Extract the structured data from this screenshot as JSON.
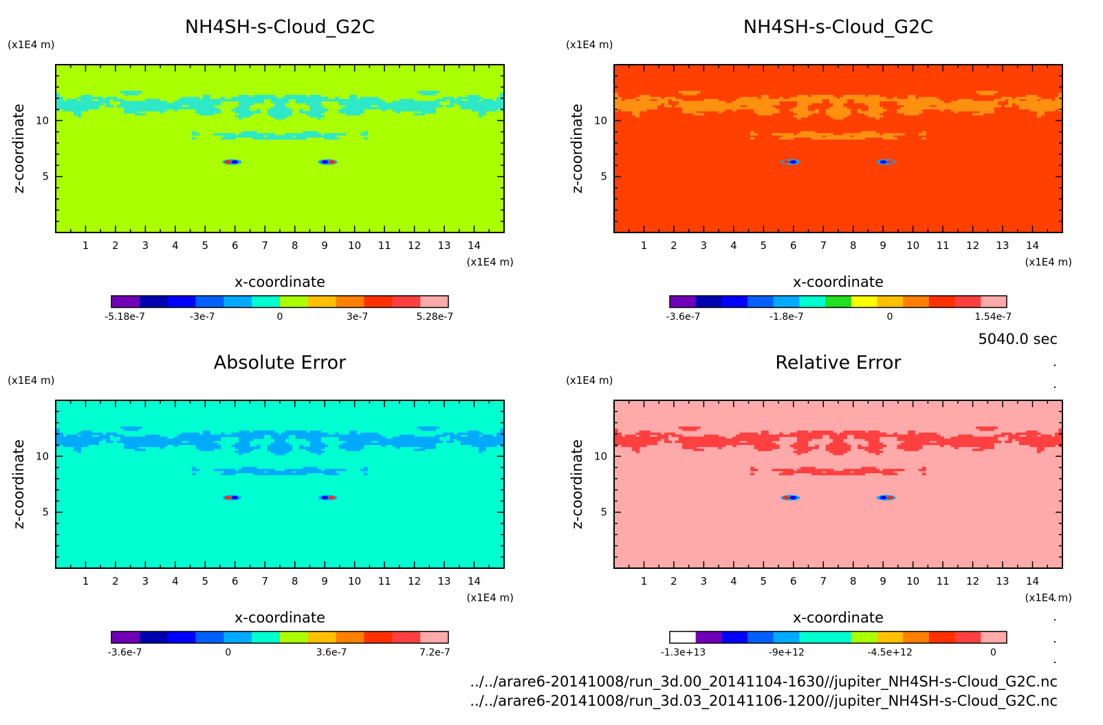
{
  "timestamp": "5040.0 sec",
  "files": [
    "../../arare6-20141008/run_3d.00_20141104-1630//jupiter_NH4SH-s-Cloud_G2C.nc",
    "../../arare6-20141008/run_3d.03_20141106-1200//jupiter_NH4SH-s-Cloud_G2C.nc"
  ],
  "chart_data": [
    {
      "type": "heatmap",
      "title": "NH4SH-s-Cloud_G2C",
      "xlabel": "x-coordinate",
      "ylabel": "z-coordinate",
      "x_unit": "(x1E4 m)",
      "y_unit": "(x1E4 m)",
      "xlim": [
        0,
        15
      ],
      "ylim": [
        0,
        15
      ],
      "x_ticks": [
        "1",
        "2",
        "3",
        "4",
        "5",
        "6",
        "7",
        "8",
        "9",
        "10",
        "11",
        "12",
        "13",
        "14"
      ],
      "y_ticks": [
        "5",
        "10"
      ],
      "background_color": "#aaff00",
      "pattern_color": "#2ee8c8",
      "colorbar": {
        "colors": [
          "#7000b8",
          "#0000b0",
          "#0000ff",
          "#0060ff",
          "#00aaff",
          "#00ffd0",
          "#aaff00",
          "#ffc000",
          "#ff8000",
          "#ff3000",
          "#ff4040",
          "#ffaaaa"
        ],
        "tick_labels": [
          "-5.18e-7",
          "-3e-7",
          "0",
          "3e-7",
          "5.28e-7"
        ]
      }
    },
    {
      "type": "heatmap",
      "title": "NH4SH-s-Cloud_G2C",
      "xlabel": "x-coordinate",
      "ylabel": "z-coordinate",
      "x_unit": "(x1E4 m)",
      "y_unit": "(x1E4 m)",
      "xlim": [
        0,
        15
      ],
      "ylim": [
        0,
        15
      ],
      "x_ticks": [
        "1",
        "2",
        "3",
        "4",
        "5",
        "6",
        "7",
        "8",
        "9",
        "10",
        "11",
        "12",
        "13",
        "14"
      ],
      "y_ticks": [
        "5",
        "10"
      ],
      "background_color": "#ff4000",
      "pattern_color": "#ff9010",
      "colorbar": {
        "colors": [
          "#7000b8",
          "#0000b0",
          "#0000ff",
          "#0060ff",
          "#00aaff",
          "#00ffd0",
          "#20e020",
          "#ffff00",
          "#ffc000",
          "#ff8000",
          "#ff3000",
          "#ff4040",
          "#ffaaaa"
        ],
        "tick_labels": [
          "-3.6e-7",
          "-1.8e-7",
          "0",
          "1.54e-7"
        ]
      }
    },
    {
      "type": "heatmap",
      "title": "Absolute Error",
      "xlabel": "x-coordinate",
      "ylabel": "z-coordinate",
      "x_unit": "(x1E4 m)",
      "y_unit": "(x1E4 m)",
      "xlim": [
        0,
        15
      ],
      "ylim": [
        0,
        15
      ],
      "x_ticks": [
        "1",
        "2",
        "3",
        "4",
        "5",
        "6",
        "7",
        "8",
        "9",
        "10",
        "11",
        "12",
        "13",
        "14"
      ],
      "y_ticks": [
        "5",
        "10"
      ],
      "background_color": "#00ffd0",
      "pattern_color": "#00aaff",
      "colorbar": {
        "colors": [
          "#7000b8",
          "#0000b0",
          "#0000ff",
          "#0060ff",
          "#00aaff",
          "#00ffd0",
          "#aaff00",
          "#ffc000",
          "#ff8000",
          "#ff3000",
          "#ff4040",
          "#ffaaaa"
        ],
        "tick_labels": [
          "-3.6e-7",
          "0",
          "3.6e-7",
          "7.2e-7"
        ]
      }
    },
    {
      "type": "heatmap",
      "title": "Relative Error",
      "xlabel": "x-coordinate",
      "ylabel": "z-coordinate",
      "x_unit": "(x1E4 m)",
      "y_unit": "(x1E4 m)",
      "xlim": [
        0,
        15
      ],
      "ylim": [
        0,
        15
      ],
      "x_ticks": [
        "1",
        "2",
        "3",
        "4",
        "5",
        "6",
        "7",
        "8",
        "9",
        "10",
        "11",
        "12",
        "13",
        "14"
      ],
      "y_ticks": [
        "5",
        "10"
      ],
      "background_color": "#ffaaaa",
      "pattern_color": "#ff4040",
      "colorbar": {
        "colors": [
          "#ffffff",
          "#7000b8",
          "#0000ff",
          "#0060ff",
          "#00aaff",
          "#00ffd0",
          "#00ffd0",
          "#aaff00",
          "#ffc000",
          "#ff8000",
          "#ff3000",
          "#ff4040",
          "#ffaaaa"
        ],
        "tick_labels": [
          "-1.3e+13",
          "-9e+12",
          "-4.5e+12",
          "0"
        ]
      }
    }
  ]
}
